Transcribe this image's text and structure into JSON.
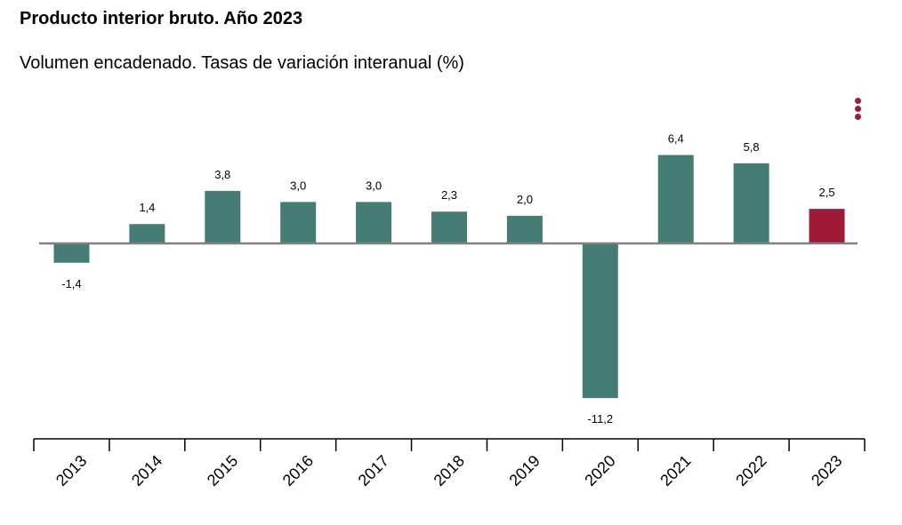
{
  "title": "Producto interior bruto. Año 2023",
  "subtitle": "Volumen encadenado. Tasas de variación interanual (%)",
  "menu": {
    "icon": "kebab-menu-icon"
  },
  "colors": {
    "bar": "#457c75",
    "highlight": "#9e1b35",
    "baseline": "#808080",
    "axis": "#000000",
    "menu": "#9e1b35"
  },
  "chart_data": {
    "type": "bar",
    "categories": [
      "2013",
      "2014",
      "2015",
      "2016",
      "2017",
      "2018",
      "2019",
      "2020",
      "2021",
      "2022",
      "2023"
    ],
    "values": [
      -1.4,
      1.4,
      3.8,
      3.0,
      3.0,
      2.3,
      2.0,
      -11.2,
      6.4,
      5.8,
      2.5
    ],
    "data_labels": [
      "-1,4",
      "1,4",
      "3,8",
      "3,0",
      "3,0",
      "2,3",
      "2,0",
      "-11,2",
      "6,4",
      "5,8",
      "2,5"
    ],
    "highlight_category": "2023",
    "title": "Producto interior bruto. Año 2023",
    "subtitle": "Volumen encadenado. Tasas de variación interanual (%)",
    "xlabel": "",
    "ylabel": "",
    "ylim": [
      -14,
      8
    ],
    "grid": false,
    "legend": "none"
  }
}
